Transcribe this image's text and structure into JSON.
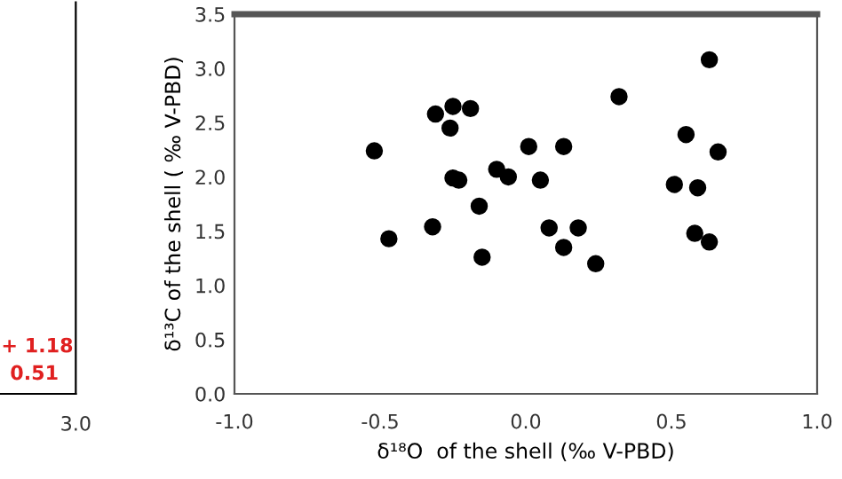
{
  "chart_data": [
    {
      "type": "other",
      "annotations": [
        "+ 1.18",
        "0.51",
        "3.0"
      ]
    },
    {
      "type": "scatter",
      "xlabel": "δ¹⁸O  of the shell (‰ V-PBD)",
      "ylabel": "δ¹³C of the shell ( ‰ V-PBD)",
      "xlim": [
        -1.0,
        1.0
      ],
      "ylim": [
        0.0,
        3.5
      ],
      "xticks": [
        {
          "value": -1.0,
          "label": "-1.0"
        },
        {
          "value": -0.5,
          "label": "-0.5"
        },
        {
          "value": 0.0,
          "label": "0.0"
        },
        {
          "value": 0.5,
          "label": "0.5"
        },
        {
          "value": 1.0,
          "label": "1.0"
        }
      ],
      "yticks": [
        {
          "value": 0.0,
          "label": "0.0"
        },
        {
          "value": 0.5,
          "label": "0.5"
        },
        {
          "value": 1.0,
          "label": "1.0"
        },
        {
          "value": 1.5,
          "label": "1.5"
        },
        {
          "value": 2.0,
          "label": "2.0"
        },
        {
          "value": 2.5,
          "label": "2.5"
        },
        {
          "value": 3.0,
          "label": "3.0"
        },
        {
          "value": 3.5,
          "label": "3.5"
        }
      ],
      "marker": "circle",
      "grid": false,
      "series": [
        {
          "color": "#000000",
          "x": [
            -0.52,
            -0.31,
            -0.25,
            -0.19,
            -0.26,
            -0.25,
            -0.23,
            -0.1,
            -0.06,
            -0.16,
            0.01,
            0.13,
            0.05,
            0.32,
            0.63,
            0.55,
            0.66,
            0.51,
            0.59,
            -0.32,
            -0.47,
            -0.15,
            0.08,
            0.18,
            0.13,
            0.24,
            0.58,
            0.63
          ],
          "values": [
            2.24,
            2.58,
            2.65,
            2.63,
            2.45,
            1.99,
            1.97,
            2.07,
            2.0,
            1.73,
            2.28,
            2.28,
            1.97,
            2.74,
            3.08,
            2.39,
            2.23,
            1.93,
            1.9,
            1.54,
            1.43,
            1.26,
            1.53,
            1.53,
            1.35,
            1.2,
            1.48,
            1.4
          ]
        }
      ]
    }
  ]
}
